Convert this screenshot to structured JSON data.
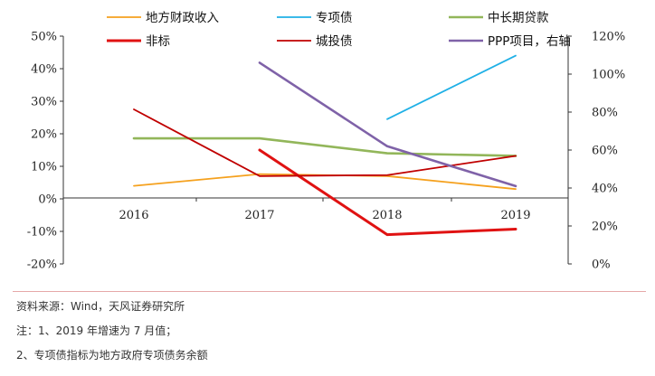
{
  "chart_data": {
    "type": "line",
    "categories": [
      "2016",
      "2017",
      "2018",
      "2019"
    ],
    "left_axis": {
      "ticks": [
        "50%",
        "40%",
        "30%",
        "20%",
        "10%",
        "0%",
        "-10%",
        "-20%"
      ],
      "ylim": [
        -20,
        50
      ]
    },
    "right_axis": {
      "ticks": [
        "120%",
        "100%",
        "80%",
        "60%",
        "40%",
        "20%",
        "0%"
      ],
      "ylim": [
        0,
        120
      ]
    },
    "series": [
      {
        "name": "地方财政收入",
        "color": "#f5a11e",
        "width": 1.8,
        "axis": "left",
        "values": [
          4,
          7.6,
          7,
          3
        ]
      },
      {
        "name": "专项债",
        "color": "#1fb0e6",
        "width": 1.8,
        "axis": "left",
        "values": [
          null,
          null,
          24.5,
          44
        ]
      },
      {
        "name": "中长期贷款",
        "color": "#92b65a",
        "width": 2.6,
        "axis": "left",
        "values": [
          18.6,
          18.6,
          14,
          13.2
        ]
      },
      {
        "name": "非标",
        "color": "#e01212",
        "width": 3,
        "axis": "left",
        "values": [
          null,
          15,
          -11,
          -9.3
        ]
      },
      {
        "name": "城投债",
        "color": "#c00000",
        "width": 1.8,
        "axis": "left",
        "values": [
          27.5,
          7,
          7.3,
          13.2
        ]
      },
      {
        "name": "PPP项目，右轴",
        "color": "#7f62a8",
        "width": 2.6,
        "axis": "right",
        "values": [
          null,
          106,
          62,
          41
        ]
      }
    ]
  },
  "notes": [
    "资料来源：Wind，天风证券研究所",
    "注：1、2019 年增速为 7 月值；",
    "2、专项债指标为地方政府专项债务余额"
  ]
}
